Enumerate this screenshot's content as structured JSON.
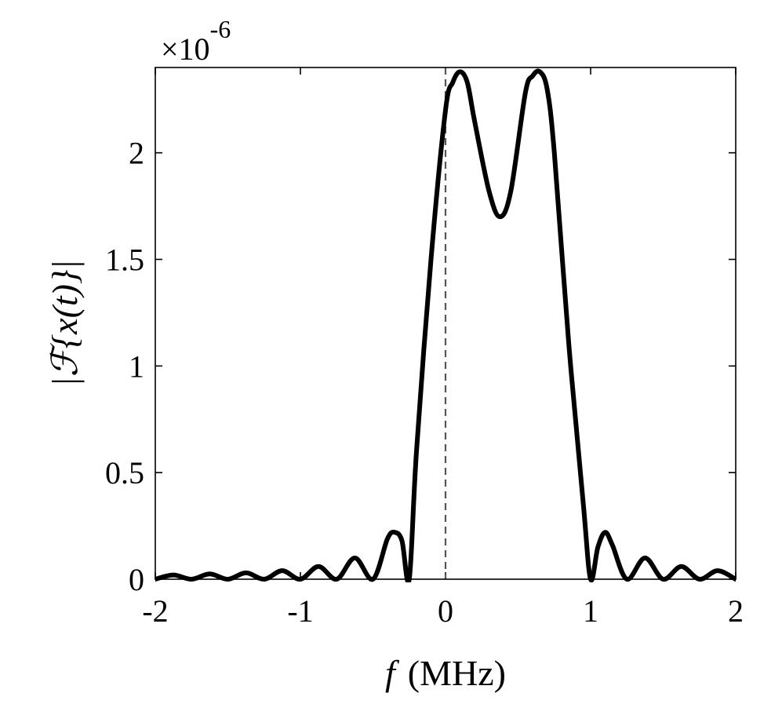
{
  "chart_data": {
    "type": "line",
    "xlabel_var": "f",
    "xlabel_unit": "(MHz)",
    "ylabel": "|ℱ{x(t)}|",
    "y_multiplier_base": "×10",
    "y_multiplier_exp": "-6",
    "xlim": [
      -2,
      2
    ],
    "ylim": [
      0,
      2.4
    ],
    "x_ticks": [
      -2,
      -1,
      0,
      1,
      2
    ],
    "x_tick_labels": [
      "-2",
      "-1",
      "0",
      "1",
      "2"
    ],
    "y_ticks": [
      0,
      0.5,
      1,
      1.5,
      2
    ],
    "y_tick_labels": [
      "0",
      "0.5",
      "1",
      "1.5",
      "2"
    ],
    "grid": false,
    "reference_line": {
      "x": 0,
      "style": "dashed",
      "color": "#555555"
    },
    "series": [
      {
        "color": "#000000",
        "x": [
          -2.0,
          -1.875,
          -1.75,
          -1.625,
          -1.5,
          -1.375,
          -1.25,
          -1.125,
          -1.0,
          -0.875,
          -0.75,
          -0.625,
          -0.5,
          -0.4,
          -0.35,
          -0.3,
          -0.25,
          -0.2,
          -0.1,
          0.0,
          0.05,
          0.1,
          0.15,
          0.2,
          0.3,
          0.375,
          0.45,
          0.55,
          0.6,
          0.65,
          0.7,
          0.75,
          0.85,
          0.95,
          1.0,
          1.05,
          1.1,
          1.15,
          1.25,
          1.375,
          1.5,
          1.625,
          1.75,
          1.875,
          2.0
        ],
        "y": [
          0.0,
          0.02,
          0.0,
          0.025,
          0.0,
          0.03,
          0.0,
          0.04,
          0.0,
          0.06,
          0.0,
          0.1,
          0.0,
          0.19,
          0.22,
          0.18,
          0.0,
          0.6,
          1.5,
          2.2,
          2.33,
          2.38,
          2.33,
          2.15,
          1.82,
          1.7,
          1.82,
          2.28,
          2.36,
          2.38,
          2.3,
          2.0,
          1.1,
          0.35,
          0.0,
          0.15,
          0.22,
          0.16,
          0.0,
          0.1,
          0.0,
          0.06,
          0.0,
          0.04,
          0.0
        ]
      }
    ]
  }
}
